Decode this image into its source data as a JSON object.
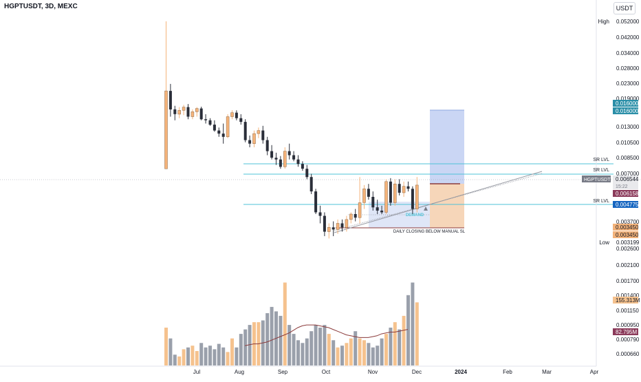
{
  "header": {
    "title": "HGPTUSDT, 3D, MEXC",
    "currency": "USDT"
  },
  "colors": {
    "up": "#f5b37a",
    "down": "#2a2e39",
    "up_volume": "#f5c28e",
    "down_volume": "#9aa0ab",
    "sr_line": "#4fc3d7",
    "trendline": "#9598a1",
    "vol_ma": "#8b3a3a",
    "target_zone": "#b8c8f0",
    "stop_zone": "#f2c49b",
    "demand": "#4fc3d7"
  },
  "chart_data": {
    "type": "candlestick",
    "symbol": "HGPTUSDT",
    "timeframe": "3D",
    "exchange": "MEXC",
    "y_scale": "log",
    "price_axis_ticks": [
      "0.042000",
      "0.034000",
      "0.028000",
      "0.023000",
      "0.019000",
      "0.013000",
      "0.010500",
      "0.008500",
      "0.007000",
      "0.003700",
      "0.002600",
      "0.002100",
      "0.001700",
      "0.001400",
      "0.001150",
      "0.000950",
      "0.000790",
      "0.000660"
    ],
    "time_axis_ticks": [
      "Jul",
      "Aug",
      "Sep",
      "Oct",
      "Nov",
      "Dec",
      "2024",
      "Feb",
      "Mar",
      "Apr"
    ],
    "high": {
      "label": "High",
      "value": "0.052000"
    },
    "low": {
      "label": "Low",
      "value": "0.003199"
    },
    "target_price_tags": [
      "0.016000",
      "0.016000"
    ],
    "current_price": {
      "symbol": "HGPTUSDT",
      "value": "0.006544",
      "countdown": "15:22"
    },
    "entry_price": "0.006158",
    "sr_price": "0.004775",
    "stop_price_tags": [
      "0.003450",
      "0.003450"
    ],
    "volume_tags": [
      "155.313M",
      "82.795M"
    ],
    "sr_levels": [
      {
        "label": "SR LVL",
        "price": 0.0083
      },
      {
        "label": "SR LVL",
        "price": 0.007
      },
      {
        "label": "SR LVL",
        "price": 0.00478
      }
    ],
    "annotations": {
      "demand": "DEMAND",
      "stop_note": "DAILY CLOSING BELOW MANUAL SL"
    },
    "candles": [
      {
        "o": 0.008,
        "h": 0.052,
        "l": 0.008,
        "c": 0.0215,
        "v": 0.42
      },
      {
        "o": 0.0215,
        "h": 0.0235,
        "l": 0.0155,
        "c": 0.017,
        "v": 0.3
      },
      {
        "o": 0.017,
        "h": 0.0178,
        "l": 0.0148,
        "c": 0.016,
        "v": 0.12
      },
      {
        "o": 0.016,
        "h": 0.0175,
        "l": 0.0152,
        "c": 0.0168,
        "v": 0.1
      },
      {
        "o": 0.0168,
        "h": 0.018,
        "l": 0.0158,
        "c": 0.0175,
        "v": 0.18
      },
      {
        "o": 0.0175,
        "h": 0.0182,
        "l": 0.015,
        "c": 0.0155,
        "v": 0.2
      },
      {
        "o": 0.0155,
        "h": 0.017,
        "l": 0.015,
        "c": 0.0165,
        "v": 0.22
      },
      {
        "o": 0.0165,
        "h": 0.0175,
        "l": 0.0155,
        "c": 0.0172,
        "v": 0.16
      },
      {
        "o": 0.0172,
        "h": 0.0176,
        "l": 0.0148,
        "c": 0.015,
        "v": 0.25
      },
      {
        "o": 0.015,
        "h": 0.016,
        "l": 0.0142,
        "c": 0.0148,
        "v": 0.2
      },
      {
        "o": 0.0148,
        "h": 0.0152,
        "l": 0.0138,
        "c": 0.014,
        "v": 0.22
      },
      {
        "o": 0.014,
        "h": 0.0148,
        "l": 0.0128,
        "c": 0.013,
        "v": 0.18
      },
      {
        "o": 0.013,
        "h": 0.0135,
        "l": 0.012,
        "c": 0.0125,
        "v": 0.24
      },
      {
        "o": 0.0125,
        "h": 0.0142,
        "l": 0.011,
        "c": 0.012,
        "v": 0.2
      },
      {
        "o": 0.012,
        "h": 0.016,
        "l": 0.0118,
        "c": 0.0155,
        "v": 0.15
      },
      {
        "o": 0.0155,
        "h": 0.0168,
        "l": 0.015,
        "c": 0.0163,
        "v": 0.3
      },
      {
        "o": 0.0163,
        "h": 0.0168,
        "l": 0.0148,
        "c": 0.0152,
        "v": 0.2
      },
      {
        "o": 0.0152,
        "h": 0.016,
        "l": 0.014,
        "c": 0.0145,
        "v": 0.35
      },
      {
        "o": 0.0145,
        "h": 0.015,
        "l": 0.0112,
        "c": 0.0115,
        "v": 0.4
      },
      {
        "o": 0.0115,
        "h": 0.0122,
        "l": 0.0105,
        "c": 0.011,
        "v": 0.45
      },
      {
        "o": 0.011,
        "h": 0.013,
        "l": 0.0105,
        "c": 0.0125,
        "v": 0.48
      },
      {
        "o": 0.0125,
        "h": 0.0135,
        "l": 0.0118,
        "c": 0.013,
        "v": 0.48
      },
      {
        "o": 0.013,
        "h": 0.0138,
        "l": 0.011,
        "c": 0.0115,
        "v": 0.5
      },
      {
        "o": 0.0115,
        "h": 0.012,
        "l": 0.0095,
        "c": 0.01,
        "v": 0.58
      },
      {
        "o": 0.01,
        "h": 0.0108,
        "l": 0.009,
        "c": 0.0092,
        "v": 0.65
      },
      {
        "o": 0.0092,
        "h": 0.0098,
        "l": 0.0084,
        "c": 0.009,
        "v": 0.6
      },
      {
        "o": 0.009,
        "h": 0.0094,
        "l": 0.008,
        "c": 0.0082,
        "v": 0.55
      },
      {
        "o": 0.0082,
        "h": 0.0105,
        "l": 0.008,
        "c": 0.01,
        "v": 0.92
      },
      {
        "o": 0.01,
        "h": 0.011,
        "l": 0.009,
        "c": 0.0095,
        "v": 0.45
      },
      {
        "o": 0.0095,
        "h": 0.01,
        "l": 0.0088,
        "c": 0.009,
        "v": 0.35
      },
      {
        "o": 0.009,
        "h": 0.0095,
        "l": 0.0082,
        "c": 0.0085,
        "v": 0.28
      },
      {
        "o": 0.0085,
        "h": 0.0088,
        "l": 0.0078,
        "c": 0.008,
        "v": 0.25
      },
      {
        "o": 0.008,
        "h": 0.0084,
        "l": 0.007,
        "c": 0.0072,
        "v": 0.3
      },
      {
        "o": 0.0072,
        "h": 0.0075,
        "l": 0.0058,
        "c": 0.006,
        "v": 0.38
      },
      {
        "o": 0.006,
        "h": 0.0062,
        "l": 0.0045,
        "c": 0.0046,
        "v": 0.45
      },
      {
        "o": 0.0046,
        "h": 0.005,
        "l": 0.004,
        "c": 0.0044,
        "v": 0.42
      },
      {
        "o": 0.0044,
        "h": 0.0046,
        "l": 0.0034,
        "c": 0.0036,
        "v": 0.45
      },
      {
        "o": 0.0036,
        "h": 0.004,
        "l": 0.0033,
        "c": 0.0038,
        "v": 0.35
      },
      {
        "o": 0.0038,
        "h": 0.0041,
        "l": 0.0034,
        "c": 0.0037,
        "v": 0.28
      },
      {
        "o": 0.0037,
        "h": 0.0042,
        "l": 0.0035,
        "c": 0.004,
        "v": 0.2
      },
      {
        "o": 0.004,
        "h": 0.0042,
        "l": 0.0036,
        "c": 0.0038,
        "v": 0.22
      },
      {
        "o": 0.0038,
        "h": 0.0044,
        "l": 0.0036,
        "c": 0.0042,
        "v": 0.25
      },
      {
        "o": 0.0042,
        "h": 0.0046,
        "l": 0.004,
        "c": 0.0045,
        "v": 0.3
      },
      {
        "o": 0.0045,
        "h": 0.0048,
        "l": 0.0041,
        "c": 0.0043,
        "v": 0.38
      },
      {
        "o": 0.0043,
        "h": 0.0072,
        "l": 0.004,
        "c": 0.0052,
        "v": 0.3
      },
      {
        "o": 0.0052,
        "h": 0.0065,
        "l": 0.0048,
        "c": 0.0062,
        "v": 0.28
      },
      {
        "o": 0.0062,
        "h": 0.0066,
        "l": 0.0054,
        "c": 0.0056,
        "v": 0.25
      },
      {
        "o": 0.0056,
        "h": 0.006,
        "l": 0.0047,
        "c": 0.0049,
        "v": 0.2
      },
      {
        "o": 0.0049,
        "h": 0.0054,
        "l": 0.0045,
        "c": 0.0047,
        "v": 0.22
      },
      {
        "o": 0.0047,
        "h": 0.005,
        "l": 0.0045,
        "c": 0.0046,
        "v": 0.3
      },
      {
        "o": 0.0046,
        "h": 0.007,
        "l": 0.0045,
        "c": 0.0068,
        "v": 0.35
      },
      {
        "o": 0.0068,
        "h": 0.0071,
        "l": 0.005,
        "c": 0.0052,
        "v": 0.42
      },
      {
        "o": 0.0052,
        "h": 0.007,
        "l": 0.005,
        "c": 0.0066,
        "v": 0.48
      },
      {
        "o": 0.0066,
        "h": 0.007,
        "l": 0.0057,
        "c": 0.0059,
        "v": 0.4
      },
      {
        "o": 0.0059,
        "h": 0.0068,
        "l": 0.0056,
        "c": 0.0064,
        "v": 0.55
      },
      {
        "o": 0.0064,
        "h": 0.0068,
        "l": 0.006,
        "c": 0.0062,
        "v": 0.78
      },
      {
        "o": 0.0062,
        "h": 0.0064,
        "l": 0.0045,
        "c": 0.0048,
        "v": 0.92
      },
      {
        "o": 0.0048,
        "h": 0.0072,
        "l": 0.0046,
        "c": 0.0065,
        "v": 0.7
      }
    ],
    "volume_ma": [
      0.22,
      0.23,
      0.24,
      0.24,
      0.25,
      0.26,
      0.28,
      0.3,
      0.32,
      0.34,
      0.36,
      0.39,
      0.42,
      0.44,
      0.45,
      0.45,
      0.45,
      0.44,
      0.43,
      0.42,
      0.4,
      0.38,
      0.36,
      0.34,
      0.33,
      0.32,
      0.31,
      0.31,
      0.31,
      0.32,
      0.33,
      0.35,
      0.36,
      0.37,
      0.37,
      0.38,
      0.39,
      0.4
    ]
  }
}
